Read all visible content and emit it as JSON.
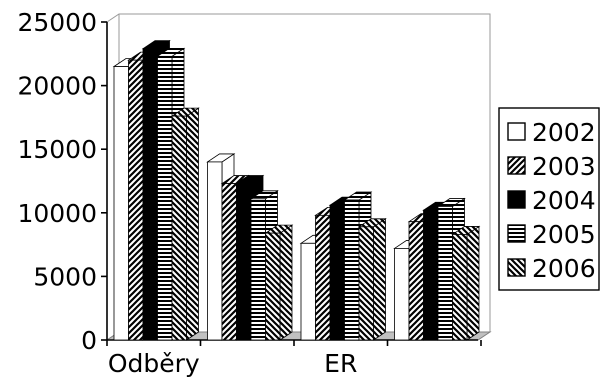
{
  "chart_data": {
    "type": "bar",
    "three_d": true,
    "categories": [
      "Odběry",
      "",
      "ER",
      ""
    ],
    "series": [
      {
        "name": "2002",
        "values": [
          21500,
          14000,
          7600,
          7200
        ],
        "pattern": "white"
      },
      {
        "name": "2003",
        "values": [
          22000,
          12300,
          9800,
          9300
        ],
        "pattern": "diagonal-up"
      },
      {
        "name": "2004",
        "values": [
          22900,
          12300,
          10600,
          10200
        ],
        "pattern": "solid-black"
      },
      {
        "name": "2005",
        "values": [
          22300,
          11100,
          11000,
          10500
        ],
        "pattern": "horizontal-lines"
      },
      {
        "name": "2006",
        "values": [
          17600,
          8400,
          8900,
          8300
        ],
        "pattern": "diagonal-down"
      }
    ],
    "ylim": [
      0,
      25000
    ],
    "yticks": [
      "0",
      "5000",
      "10000",
      "15000",
      "20000",
      "25000"
    ],
    "grid": false,
    "legend_position": "right",
    "title": "",
    "xlabel": "",
    "ylabel": ""
  }
}
